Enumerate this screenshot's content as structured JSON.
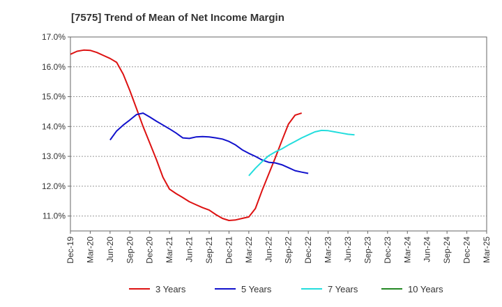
{
  "chart_data": {
    "type": "line",
    "title": "[7575]  Trend of Mean of Net Income Margin",
    "xlabel": "",
    "ylabel": "",
    "ylim": [
      10.5,
      17.0
    ],
    "y_ticks": [
      11.0,
      12.0,
      13.0,
      14.0,
      15.0,
      16.0,
      17.0
    ],
    "y_tick_labels": [
      "11.0%",
      "12.0%",
      "13.0%",
      "14.0%",
      "15.0%",
      "16.0%",
      "17.0%"
    ],
    "x_tick_labels": [
      "Dec-19",
      "Mar-20",
      "Jun-20",
      "Sep-20",
      "Dec-20",
      "Mar-21",
      "Jun-21",
      "Sep-21",
      "Dec-21",
      "Mar-22",
      "Jun-22",
      "Sep-22",
      "Dec-22",
      "Mar-23",
      "Jun-23",
      "Sep-23",
      "Dec-23",
      "Mar-24",
      "Jun-24",
      "Sep-24",
      "Dec-24",
      "Mar-25"
    ],
    "grid": "horizontal dashed",
    "legend_position": "bottom",
    "series": [
      {
        "name": "3 Years",
        "color": "#dd1111",
        "start_index": 0,
        "values": [
          16.42,
          16.52,
          16.56,
          16.55,
          16.48,
          16.38,
          16.28,
          16.15,
          15.75,
          15.2,
          14.6,
          14.0,
          13.45,
          12.9,
          12.3,
          11.9,
          11.75,
          11.62,
          11.48,
          11.38,
          11.28,
          11.2,
          11.05,
          10.92,
          10.85,
          10.87,
          10.92,
          10.97,
          11.25,
          11.85,
          12.4,
          12.95,
          13.52,
          14.08,
          14.38,
          14.45
        ]
      },
      {
        "name": "5 Years",
        "color": "#1111cc",
        "start_index": 6,
        "values": [
          13.55,
          13.85,
          14.05,
          14.22,
          14.4,
          14.45,
          14.32,
          14.18,
          14.05,
          13.92,
          13.78,
          13.62,
          13.6,
          13.65,
          13.66,
          13.65,
          13.62,
          13.58,
          13.5,
          13.38,
          13.22,
          13.1,
          13.0,
          12.88,
          12.8,
          12.78,
          12.72,
          12.62,
          12.52,
          12.47,
          12.43
        ]
      },
      {
        "name": "7 Years",
        "color": "#22dddd",
        "start_index": 27,
        "values": [
          12.35,
          12.6,
          12.82,
          13.02,
          13.15,
          13.25,
          13.38,
          13.5,
          13.62,
          13.72,
          13.82,
          13.87,
          13.86,
          13.82,
          13.78,
          13.74,
          13.72
        ]
      },
      {
        "name": "10 Years",
        "color": "#228822",
        "start_index": 0,
        "values": []
      }
    ]
  }
}
